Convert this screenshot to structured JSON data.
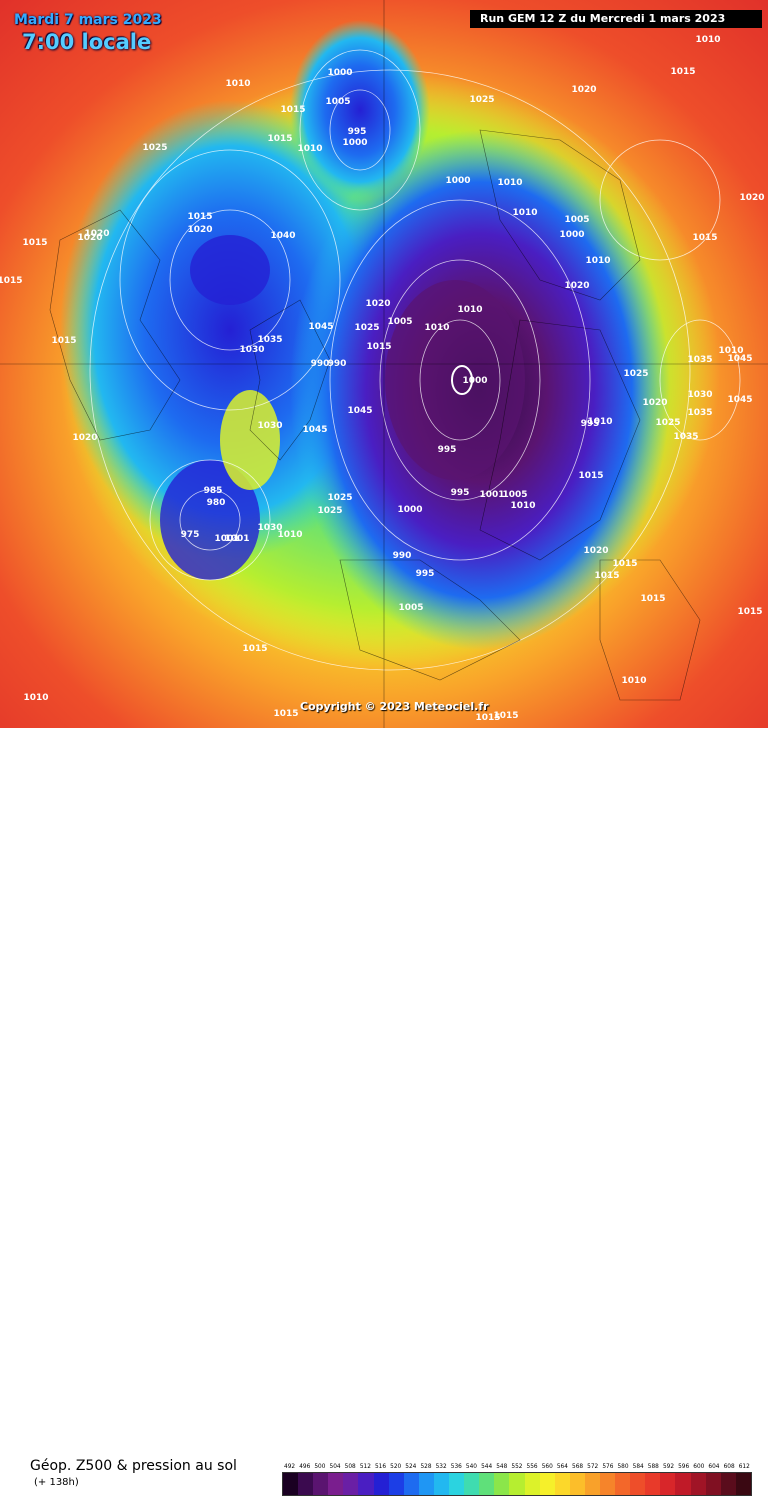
{
  "header": {
    "date": "Mardi 7 mars 2023",
    "time": "7:00 locale",
    "run": "Run GEM 12 Z du Mercredi 1 mars 2023"
  },
  "footer": {
    "copyright": "Copyright © 2023 Meteociel.fr",
    "title": "Géop. Z500 & pression au sol",
    "subtitle": "(+ 138h)"
  },
  "legend": {
    "values": [
      "492",
      "496",
      "500",
      "504",
      "508",
      "512",
      "516",
      "520",
      "524",
      "528",
      "532",
      "536",
      "540",
      "544",
      "548",
      "552",
      "556",
      "560",
      "564",
      "568",
      "572",
      "576",
      "580",
      "584",
      "588",
      "592",
      "596",
      "600",
      "604",
      "608",
      "612"
    ],
    "colors": [
      "#1a0022",
      "#3b0a4f",
      "#5a1470",
      "#7a1e8e",
      "#6a1fa5",
      "#4a1ec2",
      "#2420d4",
      "#1c3ee6",
      "#1e6bf0",
      "#1f96f4",
      "#22b8f0",
      "#2bd3e0",
      "#3fdcb0",
      "#5fe07a",
      "#8be64a",
      "#b6ee30",
      "#dcf22a",
      "#f6f02a",
      "#fcd82a",
      "#fcbe2a",
      "#f9a12a",
      "#f6842a",
      "#f3672a",
      "#ee4e2a",
      "#e83a2a",
      "#d8262a",
      "#c01a28",
      "#a01426",
      "#801022",
      "#5a0c1c",
      "#3a0812"
    ]
  },
  "pressure_labels": [
    "1010",
    "1015",
    "1025",
    "1000",
    "1005",
    "995",
    "1020",
    "1040",
    "1035",
    "1030",
    "1045",
    "990",
    "985",
    "980",
    "975",
    "1001"
  ]
}
